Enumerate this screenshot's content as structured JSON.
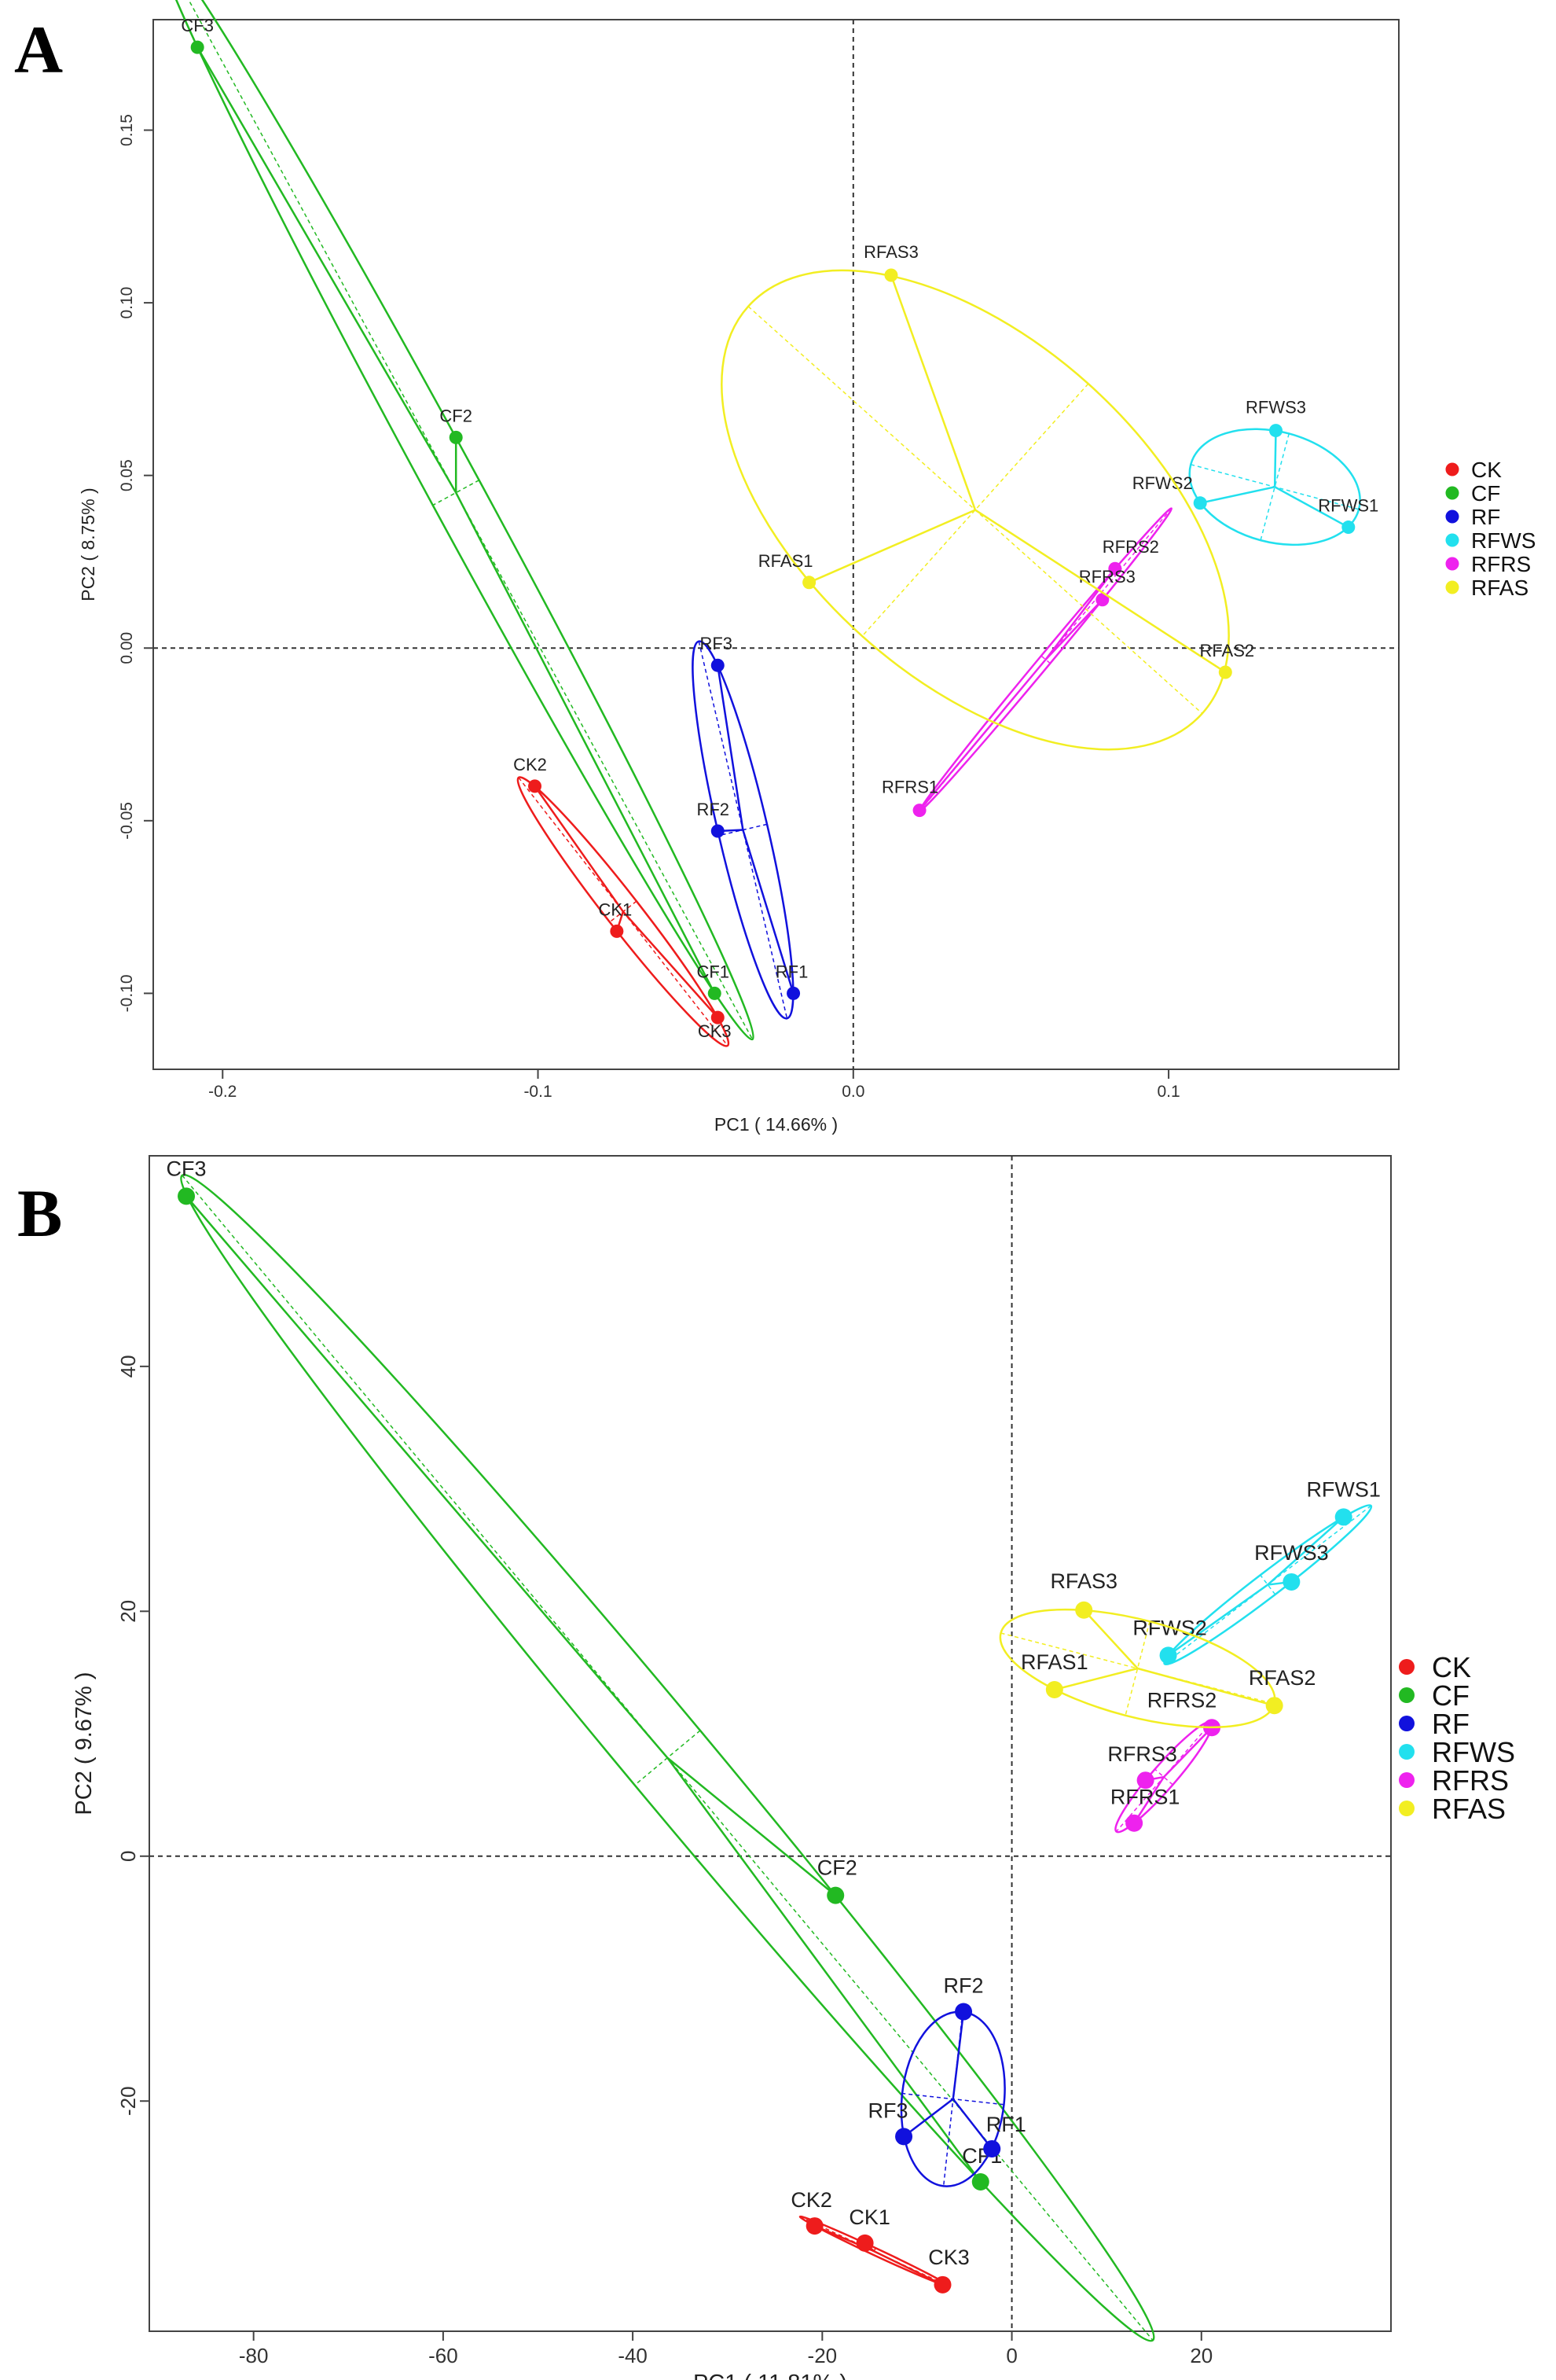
{
  "chart_data": [
    {
      "type": "scatter",
      "panel_label": "A",
      "title": "",
      "xlabel": "PC1 ( 14.66% )",
      "ylabel": "PC2 ( 8.75% )",
      "xlim": [
        -0.222,
        0.173
      ],
      "ylim": [
        -0.122,
        0.182
      ],
      "xticks": [
        -0.2,
        -0.1,
        0.0,
        0.1
      ],
      "xtick_labels": [
        "-0.2",
        "-0.1",
        "0.0",
        "0.1"
      ],
      "yticks": [
        -0.1,
        -0.05,
        0.0,
        0.05,
        0.1,
        0.15
      ],
      "ytick_labels": [
        "-0.10",
        "-0.05",
        "0.00",
        "0.05",
        "0.10",
        "0.15"
      ],
      "reference_lines": {
        "x": 0,
        "y": 0
      },
      "legend_position": "right",
      "series": [
        {
          "name": "CK",
          "color": "#ee1c1c",
          "points": [
            {
              "label": "CK1",
              "x": -0.075,
              "y": -0.082
            },
            {
              "label": "CK2",
              "x": -0.101,
              "y": -0.04
            },
            {
              "label": "CK3",
              "x": -0.043,
              "y": -0.107
            }
          ]
        },
        {
          "name": "CF",
          "color": "#22b922",
          "points": [
            {
              "label": "CF1",
              "x": -0.044,
              "y": -0.1
            },
            {
              "label": "CF2",
              "x": -0.126,
              "y": 0.061
            },
            {
              "label": "CF3",
              "x": -0.208,
              "y": 0.174
            }
          ]
        },
        {
          "name": "RF",
          "color": "#1111dd",
          "points": [
            {
              "label": "RF1",
              "x": -0.019,
              "y": -0.1
            },
            {
              "label": "RF2",
              "x": -0.043,
              "y": -0.053
            },
            {
              "label": "RF3",
              "x": -0.043,
              "y": -0.005
            }
          ]
        },
        {
          "name": "RFWS",
          "color": "#22e0ee",
          "points": [
            {
              "label": "RFWS1",
              "x": 0.157,
              "y": 0.035
            },
            {
              "label": "RFWS2",
              "x": 0.11,
              "y": 0.042
            },
            {
              "label": "RFWS3",
              "x": 0.134,
              "y": 0.063
            }
          ]
        },
        {
          "name": "RFRS",
          "color": "#ee22ee",
          "points": [
            {
              "label": "RFRS1",
              "x": 0.021,
              "y": -0.047
            },
            {
              "label": "RFRS2",
              "x": 0.083,
              "y": 0.023
            },
            {
              "label": "RFRS3",
              "x": 0.079,
              "y": 0.014
            }
          ]
        },
        {
          "name": "RFAS",
          "color": "#f2ee22",
          "points": [
            {
              "label": "RFAS1",
              "x": -0.014,
              "y": 0.019
            },
            {
              "label": "RFAS2",
              "x": 0.118,
              "y": -0.007
            },
            {
              "label": "RFAS3",
              "x": 0.012,
              "y": 0.108
            }
          ]
        }
      ]
    },
    {
      "type": "scatter",
      "panel_label": "B",
      "title": "",
      "xlabel": "PC1 ( 11.81% )",
      "ylabel": "PC2 ( 9.67% )",
      "xlim": [
        -91,
        40
      ],
      "ylim": [
        -38.8,
        57.2
      ],
      "xticks": [
        -80,
        -60,
        -40,
        -20,
        0,
        20
      ],
      "xtick_labels": [
        "-80",
        "-60",
        "-40",
        "-20",
        "0",
        "20"
      ],
      "yticks": [
        -20,
        0,
        20,
        40
      ],
      "ytick_labels": [
        "-20",
        "0",
        "20",
        "40"
      ],
      "reference_lines": {
        "x": 0,
        "y": 0
      },
      "legend_position": "right",
      "series": [
        {
          "name": "CK",
          "color": "#ee1c1c",
          "points": [
            {
              "label": "CK1",
              "x": -15.5,
              "y": -31.6
            },
            {
              "label": "CK2",
              "x": -20.8,
              "y": -30.2
            },
            {
              "label": "CK3",
              "x": -7.3,
              "y": -35.0
            }
          ]
        },
        {
          "name": "CF",
          "color": "#22b922",
          "points": [
            {
              "label": "CF1",
              "x": -3.3,
              "y": -26.6
            },
            {
              "label": "CF2",
              "x": -18.6,
              "y": -3.2
            },
            {
              "label": "CF3",
              "x": -87.1,
              "y": 53.9
            }
          ]
        },
        {
          "name": "RF",
          "color": "#1111dd",
          "points": [
            {
              "label": "RF1",
              "x": -2.1,
              "y": -23.9
            },
            {
              "label": "RF2",
              "x": -5.1,
              "y": -12.7
            },
            {
              "label": "RF3",
              "x": -11.4,
              "y": -22.9
            }
          ]
        },
        {
          "name": "RFWS",
          "color": "#22e0ee",
          "points": [
            {
              "label": "RFWS1",
              "x": 35.0,
              "y": 27.7
            },
            {
              "label": "RFWS2",
              "x": 16.5,
              "y": 16.4
            },
            {
              "label": "RFWS3",
              "x": 29.5,
              "y": 22.4
            }
          ]
        },
        {
          "name": "RFRS",
          "color": "#ee22ee",
          "points": [
            {
              "label": "RFRS1",
              "x": 12.9,
              "y": 2.7
            },
            {
              "label": "RFRS2",
              "x": 21.1,
              "y": 10.5
            },
            {
              "label": "RFRS3",
              "x": 14.1,
              "y": 6.2
            }
          ]
        },
        {
          "name": "RFAS",
          "color": "#f2ee22",
          "points": [
            {
              "label": "RFAS1",
              "x": 4.5,
              "y": 13.6
            },
            {
              "label": "RFAS2",
              "x": 27.7,
              "y": 12.3
            },
            {
              "label": "RFAS3",
              "x": 7.6,
              "y": 20.1
            }
          ]
        }
      ]
    }
  ]
}
